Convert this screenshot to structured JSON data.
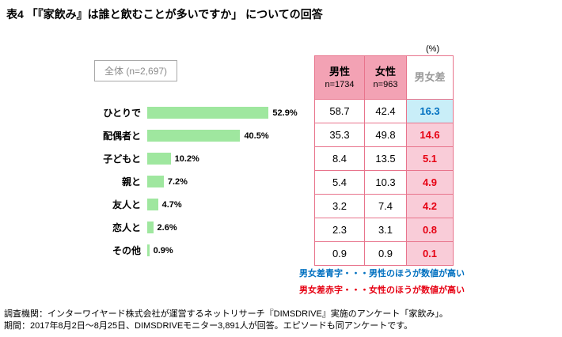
{
  "title": "表4 「『家飲み』は誰と飲むことが多いですか」 についての回答",
  "overall_label": "全体 (n=2,697)",
  "percent_label": "(%)",
  "chart_data": {
    "type": "bar",
    "orientation": "horizontal",
    "title": "表4 「『家飲み』は誰と飲むことが多いですか」 についての回答",
    "categories": [
      "ひとりで",
      "配偶者と",
      "子どもと",
      "親と",
      "友人と",
      "恋人と",
      "その他"
    ],
    "values": [
      52.9,
      40.5,
      10.2,
      7.2,
      4.7,
      2.6,
      0.9
    ],
    "value_labels": [
      "52.9%",
      "40.5%",
      "10.2%",
      "7.2%",
      "4.7%",
      "2.6%",
      "0.9%"
    ],
    "bar_color": "#9fe79f",
    "xlim": [
      0,
      60
    ],
    "series": [
      {
        "name": "男性",
        "n": "n=1734",
        "values": [
          58.7,
          35.3,
          8.4,
          5.4,
          3.2,
          2.3,
          0.9
        ]
      },
      {
        "name": "女性",
        "n": "n=963",
        "values": [
          42.4,
          49.8,
          13.5,
          10.3,
          7.4,
          3.1,
          0.9
        ]
      }
    ],
    "difference": {
      "label": "男女差",
      "values": [
        16.3,
        14.6,
        5.1,
        4.9,
        4.2,
        0.8,
        0.1
      ],
      "highlight": [
        "blue",
        "red",
        "red",
        "red",
        "red",
        "red",
        "red"
      ]
    }
  },
  "table": {
    "headers": [
      {
        "label": "男性",
        "sub": "n=1734"
      },
      {
        "label": "女性",
        "sub": "n=963"
      },
      {
        "label": "男女差",
        "sub": ""
      }
    ],
    "rows": [
      {
        "male": "58.7",
        "female": "42.4",
        "diff": "16.3",
        "diff_type": "blue"
      },
      {
        "male": "35.3",
        "female": "49.8",
        "diff": "14.6",
        "diff_type": "red"
      },
      {
        "male": "8.4",
        "female": "13.5",
        "diff": "5.1",
        "diff_type": "red"
      },
      {
        "male": "5.4",
        "female": "10.3",
        "diff": "4.9",
        "diff_type": "red"
      },
      {
        "male": "3.2",
        "female": "7.4",
        "diff": "4.2",
        "diff_type": "red"
      },
      {
        "male": "2.3",
        "female": "3.1",
        "diff": "0.8",
        "diff_type": "red"
      },
      {
        "male": "0.9",
        "female": "0.9",
        "diff": "0.1",
        "diff_type": "red"
      }
    ]
  },
  "notes": {
    "blue": "男女差青字・・・男性のほうが数値が高い",
    "red": "男女差赤字・・・女性のほうが数値が高い"
  },
  "footer": {
    "line1": "調査機関：インターワイヤード株式会社が運営するネットリサーチ『DIMSDRIVE』実施のアンケート「家飲み」。",
    "line2": "期間：2017年8月2日～8月25日、DIMSDRIVEモニター3,891人が回答。エピソードも同アンケートです。"
  },
  "colors": {
    "bar_green": "#9fe79f",
    "header_pink": "#f3a2b4",
    "diff_pink_bg": "#f9ccd8",
    "diff_blue_bg": "#c9eef8",
    "diff_red_text": "#e60012",
    "diff_blue_text": "#0070c0",
    "table_border": "#e8748c",
    "muted_gray": "#999999"
  }
}
